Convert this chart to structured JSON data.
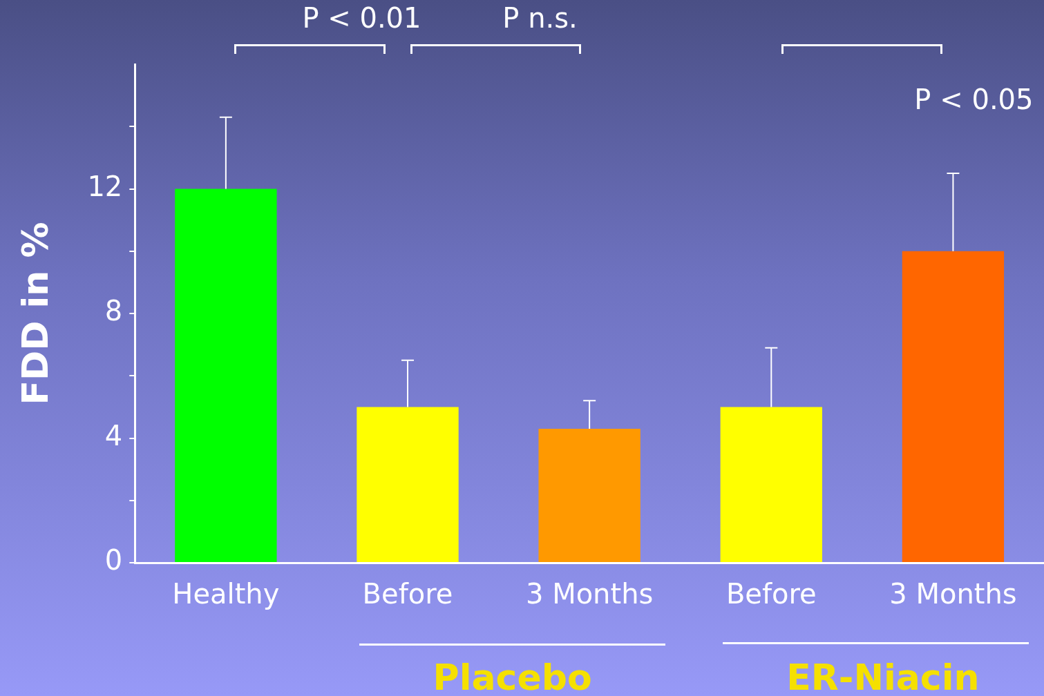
{
  "chart_data": {
    "type": "bar",
    "ylabel": "FDD in %",
    "categories": [
      "Healthy",
      "Before",
      "3 Months",
      "Before",
      "3 Months"
    ],
    "values": [
      12.0,
      5.0,
      4.3,
      5.0,
      10.0
    ],
    "colors": [
      "#00ff00",
      "#ffff00",
      "#ff9900",
      "#ffff00",
      "#ff6600"
    ],
    "errors": [
      [
        12.0,
        14.3
      ],
      [
        5.0,
        6.5
      ],
      [
        4.3,
        5.2
      ],
      [
        5.0,
        6.9
      ],
      [
        10.0,
        12.5
      ]
    ],
    "ylim": [
      0,
      16
    ],
    "yticks": [
      0,
      {
        "value": 2,
        "label": null
      },
      4,
      {
        "value": 6,
        "label": null
      },
      8,
      {
        "value": 10,
        "label": null
      },
      12,
      {
        "value": 14,
        "label": null
      }
    ],
    "annotations": [
      "P < 0.01",
      "P n.s.",
      "P < 0.05",
      "Placebo",
      "ER-Niacin"
    ]
  }
}
